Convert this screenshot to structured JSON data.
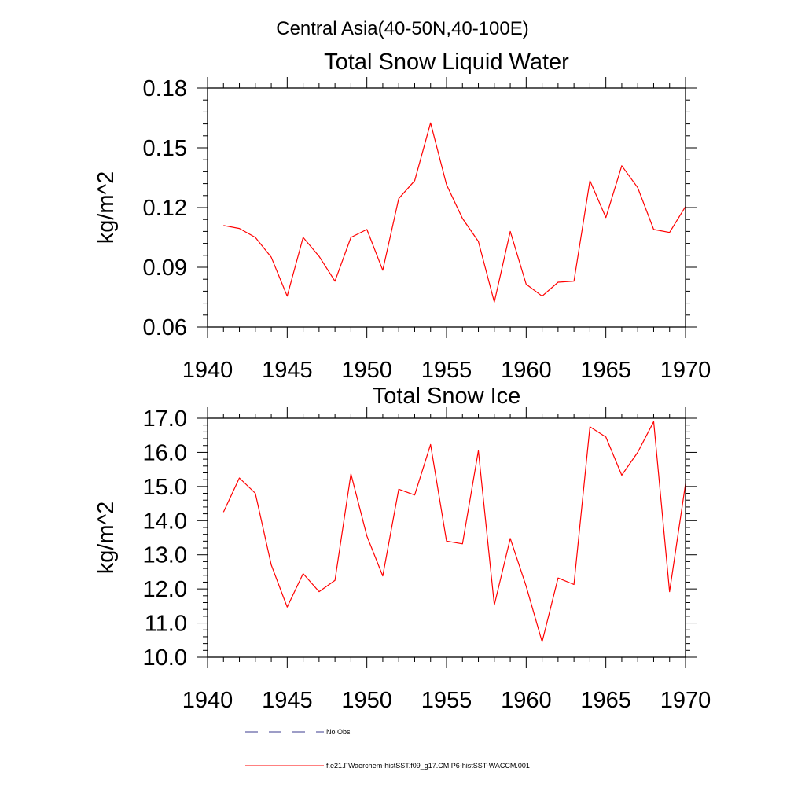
{
  "suptitle": "Central Asia(40-50N,40-100E)",
  "chart_data": [
    {
      "type": "line",
      "title": "Total Snow Liquid Water",
      "xlabel": "",
      "ylabel": "kg/m^2",
      "xlim": [
        1940,
        1970
      ],
      "ylim": [
        0.06,
        0.18
      ],
      "xticks": [
        1940,
        1945,
        1950,
        1955,
        1960,
        1965,
        1970
      ],
      "xticklabels": [
        "1940",
        "1945",
        "1950",
        "1955",
        "1960",
        "1965",
        "1970"
      ],
      "yticks": [
        0.06,
        0.09,
        0.12,
        0.15,
        0.18
      ],
      "yticklabels": [
        "0.06",
        "0.09",
        "0.12",
        "0.15",
        "0.18"
      ],
      "series": [
        {
          "color": "#ff0000",
          "x": [
            1941,
            1942,
            1943,
            1944,
            1945,
            1946,
            1947,
            1948,
            1949,
            1950,
            1951,
            1952,
            1953,
            1954,
            1955,
            1956,
            1957,
            1958,
            1959,
            1960,
            1961,
            1962,
            1963,
            1964,
            1965,
            1966,
            1967,
            1968,
            1969,
            1970
          ],
          "y": [
            0.111,
            0.1095,
            0.105,
            0.095,
            0.0755,
            0.105,
            0.0955,
            0.083,
            0.105,
            0.109,
            0.0885,
            0.1245,
            0.1335,
            0.1625,
            0.1315,
            0.1145,
            0.103,
            0.0725,
            0.108,
            0.0815,
            0.0755,
            0.0825,
            0.083,
            0.1335,
            0.115,
            0.141,
            0.13,
            0.109,
            0.1075,
            0.1205
          ]
        }
      ]
    },
    {
      "type": "line",
      "title": "Total Snow Ice",
      "xlabel": "",
      "ylabel": "kg/m^2",
      "xlim": [
        1940,
        1970
      ],
      "ylim": [
        10.0,
        17.0
      ],
      "xticks": [
        1940,
        1945,
        1950,
        1955,
        1960,
        1965,
        1970
      ],
      "xticklabels": [
        "1940",
        "1945",
        "1950",
        "1955",
        "1960",
        "1965",
        "1970"
      ],
      "yticks": [
        10,
        11,
        12,
        13,
        14,
        15,
        16,
        17
      ],
      "yticklabels": [
        "10.0",
        "11.0",
        "12.0",
        "13.0",
        "14.0",
        "15.0",
        "16.0",
        "17.0"
      ],
      "series": [
        {
          "color": "#ff0000",
          "x": [
            1941,
            1942,
            1943,
            1944,
            1945,
            1946,
            1947,
            1948,
            1949,
            1950,
            1951,
            1952,
            1953,
            1954,
            1955,
            1956,
            1957,
            1958,
            1959,
            1960,
            1961,
            1962,
            1963,
            1964,
            1965,
            1966,
            1967,
            1968,
            1969,
            1970
          ],
          "y": [
            14.25,
            15.25,
            14.8,
            12.7,
            11.47,
            12.45,
            11.92,
            12.25,
            15.37,
            13.55,
            12.38,
            14.92,
            14.75,
            16.23,
            13.4,
            13.32,
            16.05,
            11.53,
            13.48,
            12.08,
            10.45,
            12.32,
            12.13,
            16.75,
            16.45,
            15.33,
            16.0,
            16.9,
            11.92,
            15.08
          ]
        }
      ]
    }
  ],
  "legend": {
    "placement": "bottom",
    "items": [
      {
        "label": "No Obs",
        "color": "#3b3b8f",
        "style": "dashed"
      },
      {
        "label": "f.e21.FWaerchem-histSST.f09_g17.CMIP6-histSST-WACCM.001",
        "color": "#ff0000",
        "style": "solid"
      }
    ]
  }
}
